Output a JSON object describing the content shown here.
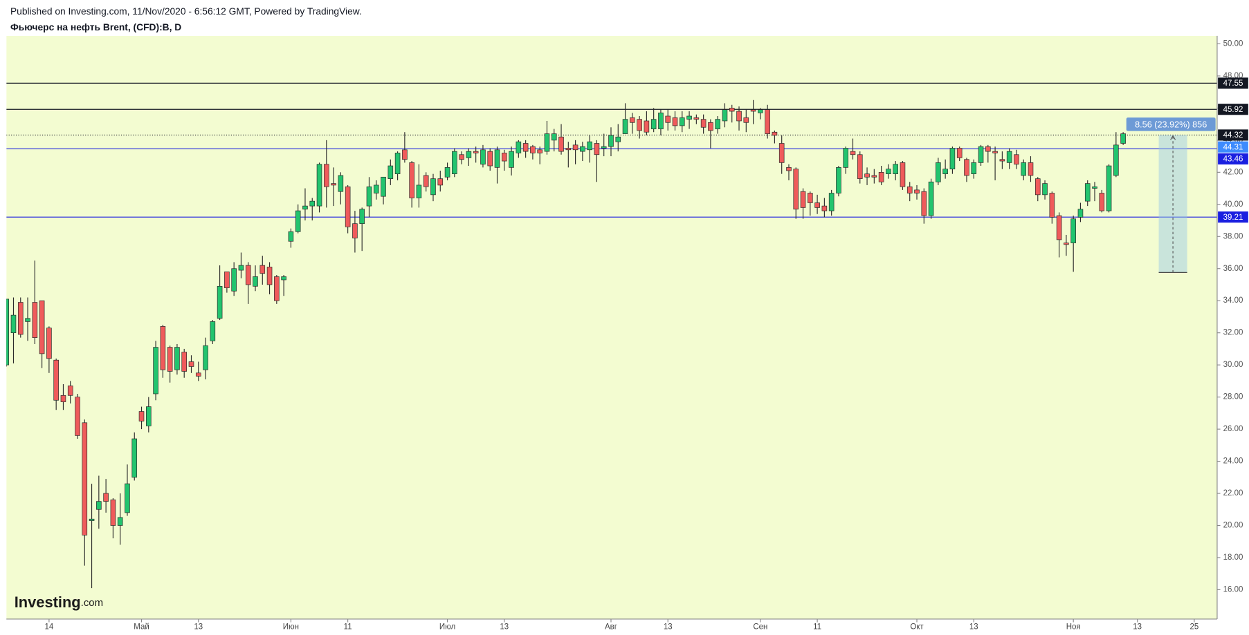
{
  "chart_data": {
    "type": "candlestick",
    "subtitle": "Published on Investing.com, 11/Nov/2020 - 6:56:12 GMT, Powered by TradingView.",
    "title": "Фьючерс на нефть Brent, (CFD):B, D",
    "watermark": {
      "brand": "Investing",
      "suffix": ".com"
    },
    "categories": [
      null,
      null,
      null,
      null,
      null,
      null,
      "14",
      null,
      null,
      null,
      null,
      null,
      null,
      null,
      null,
      null,
      null,
      null,
      null,
      "Май",
      null,
      null,
      null,
      null,
      null,
      null,
      null,
      "13",
      null,
      null,
      null,
      null,
      null,
      null,
      null,
      null,
      null,
      null,
      null,
      null,
      "Июн",
      null,
      null,
      null,
      null,
      null,
      null,
      null,
      "11",
      null,
      null,
      null,
      null,
      null,
      null,
      null,
      null,
      null,
      null,
      null,
      null,
      null,
      "Июл",
      null,
      null,
      null,
      null,
      null,
      null,
      null,
      "13",
      null,
      null,
      null,
      null,
      null,
      null,
      null,
      null,
      null,
      null,
      null,
      null,
      null,
      null,
      "Авг",
      null,
      null,
      null,
      null,
      null,
      null,
      null,
      "13",
      null,
      null,
      null,
      null,
      null,
      null,
      null,
      null,
      null,
      null,
      null,
      null,
      "Сен",
      null,
      null,
      null,
      null,
      null,
      null,
      null,
      "11",
      null,
      null,
      null,
      null,
      null,
      null,
      null,
      null,
      null,
      null,
      null,
      null,
      null,
      "Окт",
      null,
      null,
      null,
      null,
      null,
      null,
      null,
      "13",
      null,
      null,
      null,
      null,
      null,
      null,
      null,
      null,
      null,
      null,
      null,
      null,
      null,
      "Ноя",
      null,
      null,
      null,
      null,
      null,
      null,
      null,
      null,
      "13",
      null,
      null,
      null,
      null,
      null,
      null,
      null,
      "25"
    ],
    "open": [
      30.0,
      32.0,
      33.9,
      32.7,
      33.9,
      34.0,
      32.3,
      30.3,
      28.1,
      28.7,
      28.0,
      26.4,
      20.3,
      21.0,
      22.0,
      21.6,
      20.0,
      20.8,
      23.0,
      27.1,
      26.2,
      28.2,
      32.4,
      31.1,
      29.7,
      30.8,
      30.2,
      29.5,
      29.7,
      31.5,
      32.9,
      35.8,
      34.6,
      35.9,
      36.2,
      34.9,
      36.2,
      36.1,
      35.5,
      35.3,
      37.7,
      38.3,
      39.7,
      39.9,
      39.9,
      42.5,
      41.3,
      40.8,
      41.1,
      38.8,
      38.8,
      39.9,
      40.7,
      40.5,
      41.6,
      41.9,
      43.4,
      42.6,
      40.4,
      41.8,
      40.6,
      41.6,
      41.7,
      41.9,
      43.1,
      42.9,
      43.3,
      42.5,
      43.3,
      42.3,
      43.2,
      42.3,
      43.2,
      43.8,
      43.6,
      43.4,
      43.3,
      44.0,
      44.2,
      43.5,
      43.7,
      43.3,
      43.4,
      43.8,
      43.5,
      43.6,
      43.9,
      44.4,
      45.4,
      45.3,
      45.2,
      44.7,
      44.7,
      45.5,
      45.4,
      44.9,
      45.3,
      45.4,
      45.3,
      45.1,
      44.7,
      45.2,
      46.0,
      45.8,
      45.4,
      45.9,
      45.7,
      45.9,
      44.5,
      43.8,
      42.3,
      42.2,
      40.8,
      40.7,
      40.1,
      39.9,
      39.6,
      40.7,
      42.3,
      43.3,
      43.1,
      41.9,
      41.8,
      42.0,
      41.9,
      41.9,
      42.6,
      41.1,
      40.9,
      40.8,
      39.3,
      41.4,
      41.9,
      42.2,
      43.5,
      42.8,
      41.9,
      42.6,
      43.6,
      43.3,
      42.8,
      42.6,
      43.1,
      41.8,
      42.6,
      41.6,
      40.6,
      40.7,
      39.3,
      37.6,
      37.6,
      39.2,
      40.2,
      41.0,
      40.7,
      39.6,
      41.8,
      43.8,
      null,
      null,
      null,
      null,
      null,
      null,
      null,
      null,
      null,
      null
    ],
    "high": [
      34.1,
      34.2,
      34.2,
      34.2,
      36.5,
      34.0,
      32.4,
      30.4,
      28.8,
      29.0,
      28.2,
      26.6,
      22.6,
      23.1,
      22.9,
      21.7,
      22.0,
      23.8,
      25.8,
      27.4,
      28.0,
      31.5,
      32.5,
      31.2,
      31.3,
      31.0,
      30.6,
      30.2,
      31.7,
      32.8,
      36.2,
      35.8,
      36.4,
      37.0,
      36.4,
      36.2,
      36.8,
      36.4,
      35.6,
      35.6,
      38.5,
      40.0,
      41.0,
      40.4,
      42.6,
      44.0,
      42.3,
      42.0,
      41.2,
      39.6,
      39.8,
      41.7,
      41.5,
      41.7,
      42.8,
      43.3,
      44.5,
      42.7,
      42.5,
      42.0,
      41.9,
      42.1,
      42.6,
      43.5,
      43.3,
      43.5,
      43.6,
      43.7,
      43.5,
      43.6,
      43.4,
      43.6,
      44.0,
      44.0,
      43.7,
      43.6,
      45.2,
      44.7,
      45.0,
      43.9,
      44.0,
      43.9,
      44.3,
      44.0,
      44.4,
      44.8,
      45.0,
      46.3,
      45.7,
      45.5,
      45.8,
      46.0,
      45.9,
      45.9,
      45.8,
      45.8,
      45.8,
      45.6,
      45.6,
      45.3,
      45.5,
      46.3,
      46.2,
      46.1,
      45.9,
      46.5,
      46.0,
      46.2,
      44.6,
      44.3,
      42.5,
      42.3,
      41.0,
      40.8,
      40.6,
      40.4,
      40.9,
      42.4,
      43.6,
      44.1,
      43.3,
      42.3,
      42.2,
      42.4,
      42.5,
      42.7,
      42.7,
      41.4,
      41.2,
      41.0,
      41.6,
      42.9,
      42.8,
      43.6,
      43.6,
      42.9,
      42.8,
      43.7,
      43.7,
      43.6,
      43.3,
      43.5,
      43.4,
      42.8,
      43.0,
      41.7,
      41.5,
      40.8,
      39.5,
      38.1,
      39.3,
      40.1,
      41.5,
      41.4,
      40.9,
      42.5,
      44.5,
      44.5,
      null,
      null,
      null,
      null,
      null,
      null,
      null,
      null,
      null,
      null
    ],
    "low": [
      29.9,
      30.1,
      31.7,
      31.5,
      31.3,
      29.8,
      29.5,
      27.2,
      27.2,
      27.6,
      25.4,
      17.5,
      16.1,
      19.8,
      20.8,
      19.2,
      18.8,
      20.6,
      22.8,
      26.0,
      25.8,
      27.8,
      29.2,
      28.9,
      29.4,
      29.2,
      29.5,
      29.0,
      29.1,
      31.3,
      32.8,
      34.5,
      34.3,
      35.4,
      33.8,
      34.6,
      35.0,
      34.4,
      33.8,
      34.3,
      37.3,
      38.2,
      39.0,
      39.0,
      39.5,
      39.8,
      39.9,
      40.0,
      38.2,
      37.0,
      37.1,
      39.2,
      40.3,
      40.0,
      41.2,
      41.5,
      42.6,
      39.8,
      39.8,
      40.8,
      40.2,
      40.8,
      41.5,
      41.7,
      42.5,
      42.4,
      42.6,
      42.3,
      42.1,
      41.3,
      42.1,
      41.8,
      42.9,
      42.9,
      42.8,
      42.5,
      43.1,
      43.3,
      43.1,
      42.3,
      42.5,
      42.7,
      42.6,
      41.4,
      43.0,
      43.0,
      43.3,
      44.4,
      44.4,
      44.1,
      44.3,
      44.5,
      44.3,
      44.6,
      44.6,
      44.5,
      44.7,
      45.0,
      44.4,
      43.5,
      44.4,
      44.8,
      45.1,
      44.6,
      44.5,
      45.0,
      45.3,
      44.1,
      43.8,
      41.9,
      41.5,
      39.1,
      39.1,
      39.3,
      39.4,
      39.2,
      39.3,
      40.5,
      41.9,
      42.8,
      41.3,
      41.2,
      41.3,
      41.2,
      41.6,
      41.5,
      40.9,
      40.2,
      40.3,
      38.8,
      39.1,
      41.2,
      41.6,
      41.9,
      42.7,
      41.4,
      41.6,
      42.4,
      42.6,
      41.5,
      42.2,
      42.2,
      42.2,
      41.5,
      41.4,
      40.2,
      40.3,
      38.8,
      36.7,
      36.8,
      35.8,
      38.9,
      39.9,
      40.2,
      39.5,
      39.5,
      41.7,
      43.7,
      null,
      null,
      null,
      null,
      null,
      null,
      null,
      null,
      null,
      null
    ],
    "close": [
      34.1,
      33.1,
      31.9,
      32.9,
      31.7,
      30.7,
      30.4,
      27.8,
      27.7,
      28.1,
      25.6,
      19.4,
      20.4,
      21.5,
      21.5,
      20.0,
      20.5,
      22.6,
      25.4,
      26.5,
      27.4,
      31.1,
      29.7,
      29.6,
      31.1,
      29.6,
      29.9,
      29.3,
      31.2,
      32.7,
      34.9,
      34.8,
      36.0,
      36.2,
      35.0,
      35.5,
      35.7,
      35.0,
      34.0,
      35.5,
      38.3,
      39.6,
      39.9,
      40.2,
      42.5,
      41.1,
      41.2,
      41.8,
      38.6,
      37.9,
      39.7,
      41.1,
      41.2,
      41.7,
      42.4,
      43.2,
      42.8,
      40.4,
      41.2,
      41.1,
      41.6,
      41.2,
      42.3,
      43.3,
      42.8,
      43.3,
      43.2,
      43.4,
      42.4,
      43.4,
      42.7,
      43.3,
      43.9,
      43.3,
      43.2,
      43.2,
      44.4,
      44.4,
      43.3,
      43.4,
      43.4,
      43.6,
      43.9,
      43.1,
      43.6,
      44.3,
      44.2,
      45.3,
      45.1,
      44.6,
      44.5,
      45.3,
      45.7,
      45.1,
      44.9,
      45.4,
      45.5,
      45.3,
      44.8,
      44.6,
      45.3,
      45.9,
      45.8,
      45.2,
      45.1,
      45.8,
      45.9,
      44.4,
      44.3,
      42.6,
      42.1,
      39.7,
      39.8,
      40.1,
      39.8,
      39.6,
      40.7,
      42.3,
      43.5,
      43.1,
      41.6,
      41.7,
      41.7,
      41.4,
      42.2,
      42.5,
      41.1,
      40.7,
      40.7,
      39.3,
      41.4,
      42.6,
      42.2,
      43.5,
      42.9,
      41.8,
      42.6,
      43.6,
      43.3,
      43.2,
      42.7,
      43.3,
      42.5,
      42.6,
      41.8,
      40.6,
      41.3,
      39.2,
      37.8,
      37.5,
      39.1,
      39.7,
      41.3,
      41.1,
      39.6,
      42.4,
      43.7,
      44.4,
      null,
      null,
      null,
      null,
      null,
      null,
      null,
      null,
      null,
      null
    ],
    "up_color": "#22c46e",
    "down_color": "#ef5b5b",
    "outline_color": "#2a2a2a",
    "background": "#f3fcd1",
    "ylim": [
      14.17,
      50.5
    ],
    "yticks": [
      {
        "value": 16,
        "label": "16.00"
      },
      {
        "value": 18,
        "label": "18.00"
      },
      {
        "value": 20,
        "label": "20.00"
      },
      {
        "value": 22,
        "label": "22.00"
      },
      {
        "value": 24,
        "label": "24.00"
      },
      {
        "value": 26,
        "label": "26.00"
      },
      {
        "value": 28,
        "label": "28.00"
      },
      {
        "value": 30,
        "label": "30.00"
      },
      {
        "value": 32,
        "label": "32.00"
      },
      {
        "value": 34,
        "label": "34.00"
      },
      {
        "value": 36,
        "label": "36.00"
      },
      {
        "value": 38,
        "label": "38.00"
      },
      {
        "value": 40,
        "label": "40.00"
      },
      {
        "value": 42,
        "label": "42.00"
      },
      {
        "value": 44,
        "label": "44.00"
      },
      {
        "value": 46,
        "label": "46.00"
      },
      {
        "value": 48,
        "label": "48.00"
      },
      {
        "value": 50,
        "label": "50.00"
      }
    ],
    "levels": [
      {
        "value": 47.55,
        "color": "#131722",
        "style": "solid"
      },
      {
        "value": 45.92,
        "color": "#131722",
        "style": "solid"
      },
      {
        "value": 44.32,
        "color": "#131722",
        "style": "dotted"
      },
      {
        "value": 44.31,
        "color": "#3d8bfd",
        "style": "none"
      },
      {
        "value": 43.46,
        "color": "#1a1fe0",
        "style": "solid"
      },
      {
        "value": 39.21,
        "color": "#1a1fe0",
        "style": "solid"
      }
    ],
    "measure": {
      "label": "8.56 (23.92%) 856",
      "from": 35.76,
      "to": 44.32
    }
  }
}
